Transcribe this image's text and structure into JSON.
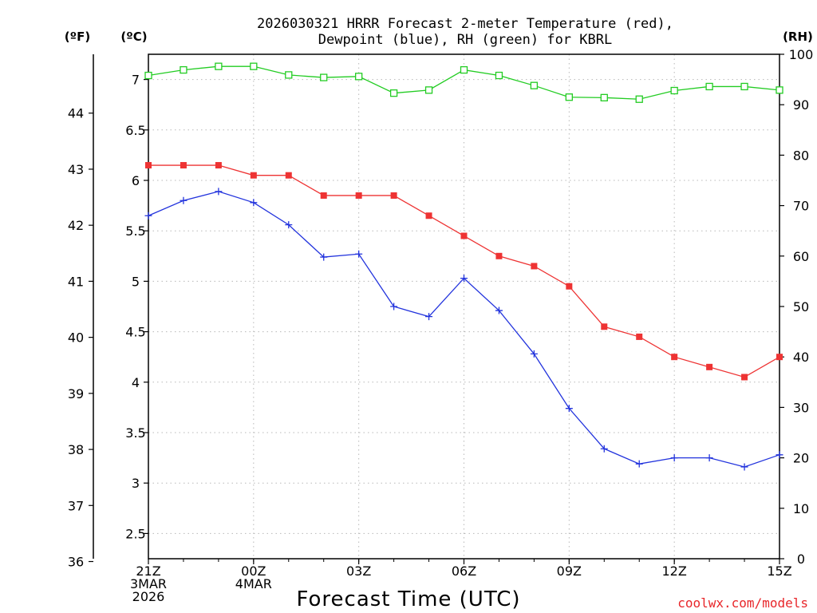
{
  "chart_data": {
    "type": "line",
    "title_line1": "2026030321 HRRR Forecast 2-meter Temperature (red),",
    "title_line2": "Dewpoint (blue), RH (green) for KBRL",
    "xlabel": "Forecast Time (UTC)",
    "credit": "coolwx.com/models",
    "units": {
      "fahrenheit": "(ºF)",
      "celsius": "(ºC)",
      "rh": "(RH)"
    },
    "x_hours": [
      0,
      1,
      2,
      3,
      4,
      5,
      6,
      7,
      8,
      9,
      10,
      11,
      12,
      13,
      14,
      15,
      16,
      17,
      18
    ],
    "x_ticks": [
      {
        "hour": 0,
        "lines": [
          "21Z",
          "3MAR",
          "2026"
        ]
      },
      {
        "hour": 3,
        "lines": [
          "00Z",
          "4MAR"
        ]
      },
      {
        "hour": 6,
        "lines": [
          "03Z"
        ]
      },
      {
        "hour": 9,
        "lines": [
          "06Z"
        ]
      },
      {
        "hour": 12,
        "lines": [
          "09Z"
        ]
      },
      {
        "hour": 15,
        "lines": [
          "12Z"
        ]
      },
      {
        "hour": 18,
        "lines": [
          "15Z"
        ]
      }
    ],
    "left_axis_c": {
      "ylim": [
        2.25,
        7.25
      ],
      "ticks": [
        "2.5",
        "3",
        "3.5",
        "4",
        "4.5",
        "5",
        "5.5",
        "6",
        "6.5",
        "7"
      ]
    },
    "left_axis_f": {
      "ticks": [
        "36",
        "37",
        "38",
        "39",
        "40",
        "41",
        "42",
        "43",
        "44"
      ]
    },
    "right_axis_rh": {
      "ylim": [
        0,
        100
      ],
      "ticks": [
        "0",
        "10",
        "20",
        "30",
        "40",
        "50",
        "60",
        "70",
        "80",
        "90",
        "100"
      ]
    },
    "series": [
      {
        "name": "Temperature (C)",
        "color": "#ee3333",
        "marker": "filled-square",
        "values": [
          6.15,
          6.15,
          6.15,
          6.05,
          6.05,
          5.85,
          5.85,
          5.85,
          5.65,
          5.45,
          5.25,
          5.15,
          4.95,
          4.55,
          4.45,
          4.25,
          4.15,
          4.05,
          4.25
        ]
      },
      {
        "name": "Dewpoint (C)",
        "color": "#2233dd",
        "marker": "plus",
        "values": [
          5.65,
          5.8,
          5.89,
          5.78,
          5.56,
          5.24,
          5.27,
          4.75,
          4.65,
          5.03,
          4.71,
          4.28,
          3.74,
          3.34,
          3.19,
          3.25,
          3.25,
          3.16,
          3.28
        ]
      },
      {
        "name": "RH (%)",
        "color": "#22cc22",
        "marker": "open-square",
        "values": [
          95.8,
          96.9,
          97.6,
          97.6,
          95.9,
          95.4,
          95.6,
          92.3,
          92.9,
          96.9,
          95.8,
          93.8,
          91.5,
          91.4,
          91.1,
          92.8,
          93.6,
          93.6,
          92.9
        ]
      }
    ]
  }
}
